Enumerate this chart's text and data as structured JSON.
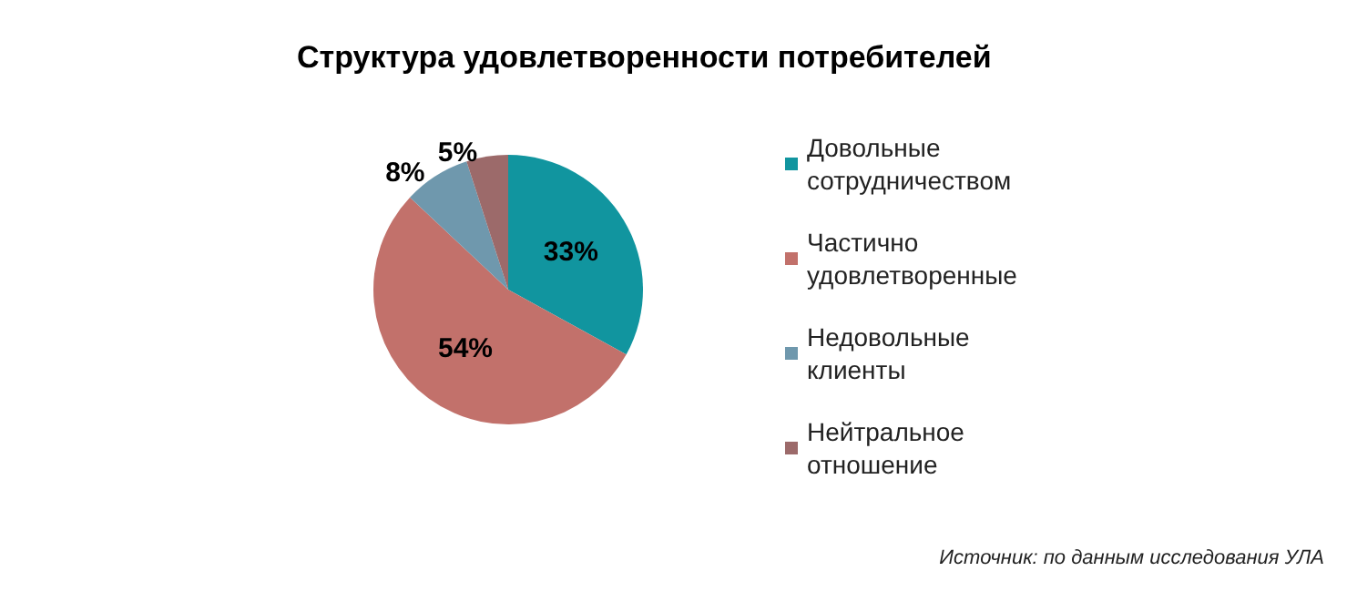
{
  "chart_data": {
    "type": "pie",
    "title": "Структура удовлетворенности потребителей",
    "categories": [
      "Довольные сотрудничеством",
      "Частично удовлетворенные",
      "Недовольные клиенты",
      "Нейтральное отношение"
    ],
    "values": [
      33,
      54,
      8,
      5
    ],
    "colors": [
      "#11959f",
      "#c2716b",
      "#6f98ad",
      "#9c6a6a"
    ],
    "value_labels": [
      "33%",
      "54%",
      "8%",
      "5%"
    ],
    "legend": "right",
    "annotations": [
      "Источник: по данным исследования УЛА"
    ]
  }
}
